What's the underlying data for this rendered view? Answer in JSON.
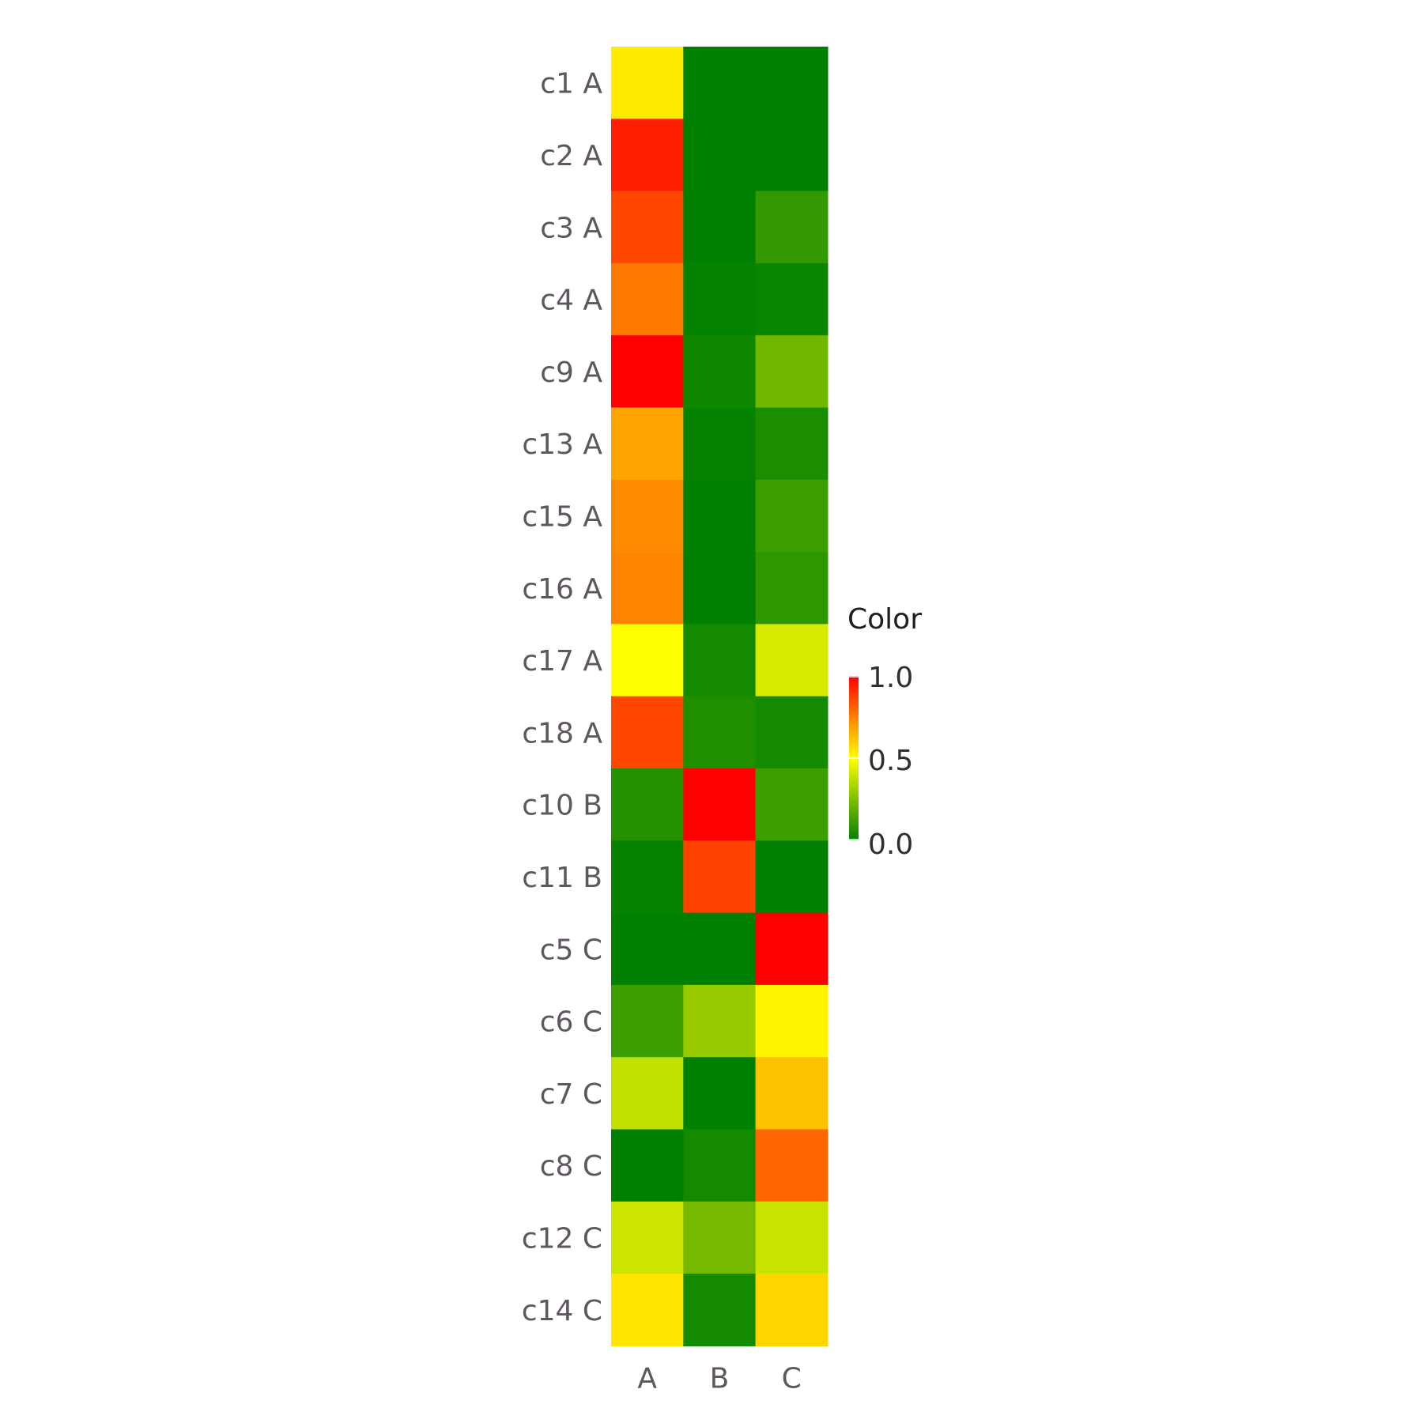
{
  "chart_data": {
    "type": "heatmap",
    "title": "",
    "xlabel": "",
    "ylabel": "",
    "columns": [
      "A",
      "B",
      "C"
    ],
    "rows": [
      "c1 A",
      "c2 A",
      "c3 A",
      "c4 A",
      "c9 A",
      "c13 A",
      "c15 A",
      "c16 A",
      "c17 A",
      "c18 A",
      "c10 B",
      "c11 B",
      "c5 C",
      "c6 C",
      "c7 C",
      "c8 C",
      "c12 C",
      "c14 C"
    ],
    "values": [
      [
        0.54,
        0.0,
        0.0
      ],
      [
        0.94,
        0.0,
        0.0
      ],
      [
        0.86,
        0.0,
        0.1
      ],
      [
        0.76,
        0.01,
        0.02
      ],
      [
        1.0,
        0.03,
        0.22
      ],
      [
        0.68,
        0.01,
        0.05
      ],
      [
        0.73,
        0.0,
        0.12
      ],
      [
        0.74,
        0.0,
        0.09
      ],
      [
        0.5,
        0.04,
        0.42
      ],
      [
        0.86,
        0.06,
        0.04
      ],
      [
        0.07,
        1.0,
        0.12
      ],
      [
        0.01,
        0.87,
        0.0
      ],
      [
        0.0,
        0.0,
        1.0
      ],
      [
        0.12,
        0.3,
        0.52
      ],
      [
        0.38,
        0.0,
        0.62
      ],
      [
        0.0,
        0.04,
        0.8
      ],
      [
        0.4,
        0.23,
        0.39
      ],
      [
        0.55,
        0.04,
        0.58
      ]
    ],
    "color_scale": {
      "title": "Color",
      "min": 0.0,
      "max": 1.0,
      "ticks": [
        "1.0",
        "0.5",
        "0.0"
      ],
      "stops": [
        "#008000",
        "#ffff00",
        "#ff0000"
      ]
    }
  }
}
